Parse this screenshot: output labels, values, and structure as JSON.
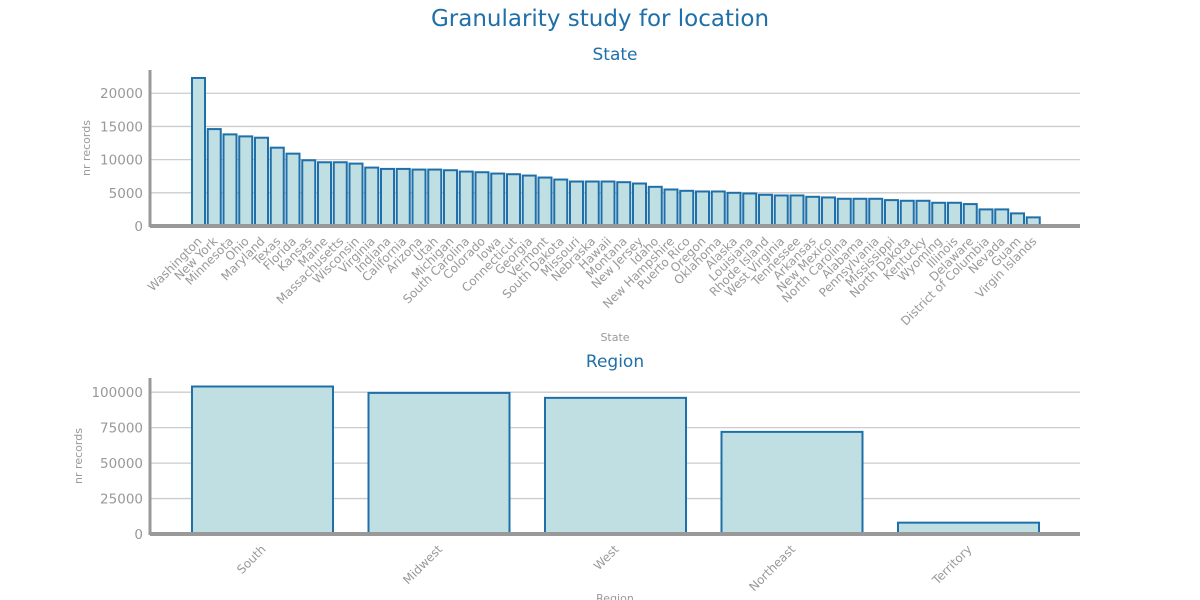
{
  "figure": {
    "title": "Granularity study for location",
    "colors": {
      "bar_fill": "#bfdfe2",
      "bar_stroke": "#1f6fa8",
      "title": "#1f6fa8",
      "axis": "#999999",
      "grid": "#cccccc",
      "text": "#999999"
    }
  },
  "chart_data": [
    {
      "type": "bar",
      "title": "State",
      "xlabel": "State",
      "ylabel": "nr records",
      "ylim": [
        0,
        23500
      ],
      "yticks": [
        0,
        5000,
        10000,
        15000,
        20000
      ],
      "grid": true,
      "categories": [
        "Washington",
        "New York",
        "Minnesota",
        "Ohio",
        "Maryland",
        "Texas",
        "Florida",
        "Kansas",
        "Maine",
        "Massachusetts",
        "Wisconsin",
        "Virginia",
        "Indiana",
        "California",
        "Arizona",
        "Utah",
        "Michigan",
        "South Carolina",
        "Colorado",
        "Iowa",
        "Connecticut",
        "Georgia",
        "Vermont",
        "South Dakota",
        "Missouri",
        "Nebraska",
        "Hawaii",
        "Montana",
        "New Jersey",
        "Idaho",
        "New Hampshire",
        "Puerto Rico",
        "Oregon",
        "Oklahoma",
        "Alaska",
        "Louisiana",
        "Rhode Island",
        "West Virginia",
        "Tennessee",
        "Arkansas",
        "New Mexico",
        "North Carolina",
        "Alabama",
        "Pennsylvania",
        "Mississippi",
        "North Dakota",
        "Kentucky",
        "Wyoming",
        "Illinois",
        "Delaware",
        "District of Columbia",
        "Nevada",
        "Guam",
        "Virgin Islands"
      ],
      "values": [
        22300,
        14600,
        13800,
        13500,
        13300,
        11800,
        10900,
        9900,
        9600,
        9600,
        9400,
        8800,
        8600,
        8600,
        8500,
        8500,
        8400,
        8200,
        8100,
        7900,
        7800,
        7600,
        7300,
        7000,
        6700,
        6700,
        6700,
        6600,
        6400,
        5900,
        5500,
        5300,
        5200,
        5200,
        5000,
        4900,
        4700,
        4600,
        4600,
        4400,
        4300,
        4100,
        4100,
        4100,
        3900,
        3800,
        3800,
        3500,
        3500,
        3300,
        2500,
        2500,
        1900,
        1300
      ]
    },
    {
      "type": "bar",
      "title": "Region",
      "xlabel": "Region",
      "ylabel": "nr records",
      "ylim": [
        0,
        110000
      ],
      "yticks": [
        0,
        25000,
        50000,
        75000,
        100000
      ],
      "grid": true,
      "categories": [
        "South",
        "Midwest",
        "West",
        "Northeast",
        "Territory"
      ],
      "values": [
        104000,
        99500,
        96000,
        72000,
        8000
      ]
    }
  ]
}
